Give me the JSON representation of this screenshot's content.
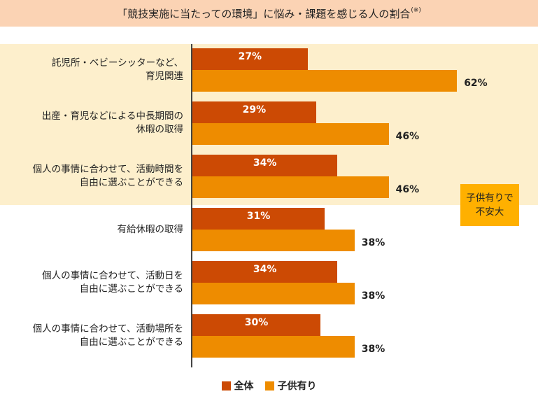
{
  "title": "「競技実施に当たっての環境」に悩み・課題を感じる人の割合",
  "title_note": "(※)",
  "callout": [
    "子供有りで",
    "不安大"
  ],
  "colors": {
    "all": "#cc4a04",
    "kids": "#ee8c00",
    "highlight": "#fdefcc",
    "title_bg": "#fbd3b4",
    "callout": "#ffb000"
  },
  "chart_data": {
    "type": "bar",
    "orientation": "horizontal",
    "title": "「競技実施に当たっての環境」に悩み・課題を感じる人の割合",
    "categories": [
      [
        "託児所・ベビーシッターなど、",
        "育児関連"
      ],
      [
        "出産・育児などによる中長期間の",
        "休暇の取得"
      ],
      [
        "個人の事情に合わせて、活動時間を",
        "自由に選ぶことができる"
      ],
      [
        "有給休暇の取得"
      ],
      [
        "個人の事情に合わせて、活動日を",
        "自由に選ぶことができる"
      ],
      [
        "個人の事情に合わせて、活動場所を",
        "自由に選ぶことができる"
      ]
    ],
    "series": [
      {
        "name": "全体",
        "values": [
          27,
          29,
          34,
          31,
          34,
          30
        ],
        "labels": [
          "27%",
          "29%",
          "34%",
          "31%",
          "34%",
          "30%"
        ]
      },
      {
        "name": "子供有り",
        "values": [
          62,
          46,
          46,
          38,
          38,
          38
        ],
        "labels": [
          "62%",
          "46%",
          "46%",
          "38%",
          "38%",
          "38%"
        ]
      }
    ],
    "xlim": [
      0,
      100
    ],
    "legend_position": "bottom"
  }
}
